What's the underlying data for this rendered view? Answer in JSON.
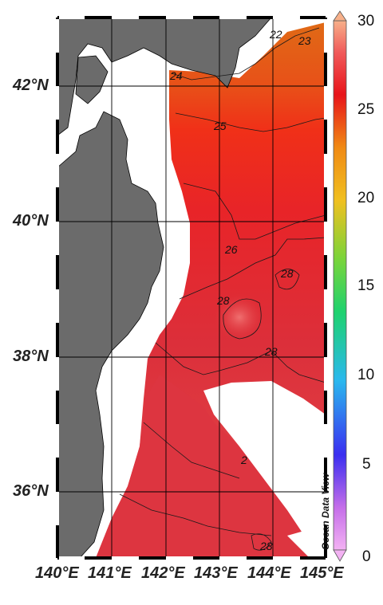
{
  "map": {
    "lat_labels": [
      "42°N",
      "40°N",
      "38°N",
      "36°N"
    ],
    "lon_labels": [
      "140°E",
      "141°E",
      "142°E",
      "143°E",
      "144°E",
      "145°E"
    ],
    "contour_labels": [
      "22",
      "23",
      "24",
      "25",
      "26",
      "28",
      "28",
      "28",
      "2",
      "28"
    ],
    "watermark": "Ocean Data View"
  },
  "colorbar": {
    "ticks": [
      "30",
      "25",
      "20",
      "15",
      "10",
      "5",
      "0"
    ],
    "min": 0,
    "max": 30
  },
  "colors": {
    "land": "#6b6b6b",
    "ocean_warm": "#e03838",
    "ocean_hot": "#ff2010",
    "ocean_orange": "#e87018",
    "grid": "#000000"
  }
}
